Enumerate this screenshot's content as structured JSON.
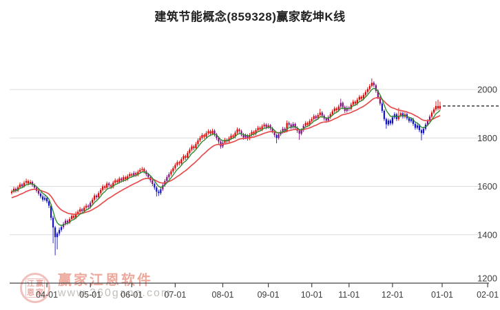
{
  "page": {
    "title": "建筑节能概念(859328)赢家乾坤K线"
  },
  "watermark": {
    "brand": "赢家江恩软件",
    "url": "www.360gann.com",
    "seal_chars": [
      "江",
      "赢",
      "恩",
      "家"
    ]
  },
  "chart_data": {
    "type": "candlestick",
    "title": "建筑节能概念(859328)赢家乾坤K线",
    "x_tick_labels": [
      "04-01",
      "05-01",
      "06-01",
      "07-01",
      "08-01",
      "09-01",
      "10-01",
      "11-01",
      "12-01",
      "01-01",
      "02-01"
    ],
    "x_tick_days": [
      17,
      38,
      58,
      79,
      102,
      124,
      145,
      163,
      184,
      208,
      230
    ],
    "y_axis": {
      "min": 1200,
      "max": 2000,
      "step": 200
    },
    "y_tick_labels": [
      "2000",
      "1800",
      "1600",
      "1400",
      "1200"
    ],
    "grid": true,
    "legend": "none",
    "last_price": 1932,
    "last_price_line_style": "black-dashed",
    "colors": {
      "up": "#e10000",
      "down": "#1212cc",
      "neutral": "#7d0b7d",
      "ma_short": "#2f8b30",
      "ma_long": "#e74c4c",
      "grid": "#dcdcdc",
      "axis": "#444444",
      "label": "#3c3c3c",
      "dashed_line": "#111111"
    },
    "ma_lines": [
      {
        "name": "ma-short",
        "period": 6,
        "seed": 1578,
        "color_key": "ma_short",
        "width": 1.4
      },
      {
        "name": "ma-long",
        "period": 20,
        "seed": 1550,
        "color_key": "ma_long",
        "width": 1.7
      }
    ],
    "candles": [
      [
        1572,
        1586,
        1566,
        1578,
        "r"
      ],
      [
        1578,
        1598,
        1572,
        1590,
        "r"
      ],
      [
        1590,
        1596,
        1574,
        1582,
        "p"
      ],
      [
        1582,
        1604,
        1576,
        1596,
        "r"
      ],
      [
        1596,
        1616,
        1590,
        1608,
        "r"
      ],
      [
        1608,
        1614,
        1592,
        1600,
        "p"
      ],
      [
        1600,
        1623,
        1595,
        1615,
        "r"
      ],
      [
        1615,
        1632,
        1608,
        1622,
        "r"
      ],
      [
        1622,
        1628,
        1604,
        1612,
        "r"
      ],
      [
        1612,
        1627,
        1606,
        1618,
        "r"
      ],
      [
        1618,
        1624,
        1598,
        1606,
        "p"
      ],
      [
        1606,
        1612,
        1588,
        1595,
        "p"
      ],
      [
        1595,
        1602,
        1574,
        1582,
        "p"
      ],
      [
        1582,
        1590,
        1562,
        1570,
        "p"
      ],
      [
        1570,
        1576,
        1550,
        1558,
        "b"
      ],
      [
        1558,
        1566,
        1537,
        1545,
        "b"
      ],
      [
        1545,
        1562,
        1539,
        1552,
        "b"
      ],
      [
        1552,
        1558,
        1530,
        1538,
        "b"
      ],
      [
        1538,
        1544,
        1510,
        1520,
        "b"
      ],
      [
        1520,
        1526,
        1460,
        1470,
        "b"
      ],
      [
        1470,
        1478,
        1365,
        1430,
        "b"
      ],
      [
        1430,
        1436,
        1315,
        1390,
        "b"
      ],
      [
        1390,
        1412,
        1340,
        1405,
        "b"
      ],
      [
        1405,
        1430,
        1396,
        1420,
        "b"
      ],
      [
        1420,
        1441,
        1412,
        1432,
        "b"
      ],
      [
        1432,
        1453,
        1424,
        1445,
        "p"
      ],
      [
        1445,
        1466,
        1438,
        1458,
        "p"
      ],
      [
        1458,
        1464,
        1441,
        1450,
        "p"
      ],
      [
        1450,
        1473,
        1444,
        1465,
        "r"
      ],
      [
        1465,
        1487,
        1458,
        1478,
        "r"
      ],
      [
        1478,
        1484,
        1461,
        1470,
        "r"
      ],
      [
        1470,
        1496,
        1464,
        1488,
        "r"
      ],
      [
        1488,
        1503,
        1481,
        1495,
        "r"
      ],
      [
        1495,
        1514,
        1488,
        1505,
        "r"
      ],
      [
        1505,
        1511,
        1490,
        1498,
        "p"
      ],
      [
        1498,
        1520,
        1491,
        1512,
        "r"
      ],
      [
        1512,
        1529,
        1505,
        1520,
        "r"
      ],
      [
        1520,
        1526,
        1506,
        1515,
        "p"
      ],
      [
        1515,
        1540,
        1508,
        1532,
        "p"
      ],
      [
        1532,
        1553,
        1525,
        1545,
        "r"
      ],
      [
        1545,
        1570,
        1538,
        1562,
        "r"
      ],
      [
        1562,
        1568,
        1546,
        1555,
        "p"
      ],
      [
        1555,
        1580,
        1548,
        1572,
        "r"
      ],
      [
        1572,
        1593,
        1565,
        1585,
        "r"
      ],
      [
        1585,
        1608,
        1578,
        1600,
        "r"
      ],
      [
        1600,
        1606,
        1585,
        1594,
        "r"
      ],
      [
        1594,
        1620,
        1587,
        1612,
        "r"
      ],
      [
        1612,
        1618,
        1596,
        1605,
        "p"
      ],
      [
        1605,
        1611,
        1589,
        1598,
        "r"
      ],
      [
        1598,
        1623,
        1591,
        1615,
        "r"
      ],
      [
        1615,
        1633,
        1608,
        1625,
        "r"
      ],
      [
        1625,
        1631,
        1609,
        1618,
        "r"
      ],
      [
        1618,
        1640,
        1611,
        1632,
        "r"
      ],
      [
        1632,
        1638,
        1616,
        1625,
        "p"
      ],
      [
        1625,
        1646,
        1618,
        1638,
        "r"
      ],
      [
        1638,
        1644,
        1621,
        1630,
        "r"
      ],
      [
        1630,
        1650,
        1623,
        1642,
        "r"
      ],
      [
        1642,
        1658,
        1635,
        1650,
        "r"
      ],
      [
        1650,
        1656,
        1636,
        1645,
        "r"
      ],
      [
        1645,
        1663,
        1638,
        1655,
        "p"
      ],
      [
        1655,
        1661,
        1639,
        1648,
        "r"
      ],
      [
        1648,
        1668,
        1641,
        1660,
        "r"
      ],
      [
        1660,
        1676,
        1653,
        1668,
        "r"
      ],
      [
        1668,
        1680,
        1661,
        1672,
        "r"
      ],
      [
        1672,
        1678,
        1653,
        1662,
        "r"
      ],
      [
        1662,
        1668,
        1641,
        1650,
        "p"
      ],
      [
        1650,
        1656,
        1629,
        1638,
        "p"
      ],
      [
        1638,
        1644,
        1616,
        1625,
        "p"
      ],
      [
        1625,
        1631,
        1601,
        1610,
        "p"
      ],
      [
        1610,
        1616,
        1586,
        1595,
        "b"
      ],
      [
        1595,
        1601,
        1558,
        1578,
        "b"
      ],
      [
        1578,
        1586,
        1560,
        1572,
        "b"
      ],
      [
        1572,
        1596,
        1565,
        1588,
        "b"
      ],
      [
        1588,
        1613,
        1581,
        1605,
        "p"
      ],
      [
        1605,
        1630,
        1598,
        1622,
        "p"
      ],
      [
        1622,
        1646,
        1615,
        1638,
        "p"
      ],
      [
        1638,
        1658,
        1631,
        1650,
        "p"
      ],
      [
        1650,
        1670,
        1643,
        1662,
        "r"
      ],
      [
        1662,
        1683,
        1655,
        1675,
        "r"
      ],
      [
        1675,
        1696,
        1668,
        1688,
        "r"
      ],
      [
        1688,
        1708,
        1681,
        1700,
        "r"
      ],
      [
        1700,
        1706,
        1686,
        1695,
        "r"
      ],
      [
        1695,
        1720,
        1688,
        1712,
        "r"
      ],
      [
        1712,
        1733,
        1705,
        1725,
        "r"
      ],
      [
        1725,
        1731,
        1709,
        1718,
        "r"
      ],
      [
        1718,
        1746,
        1711,
        1738,
        "r"
      ],
      [
        1738,
        1760,
        1731,
        1752,
        "r"
      ],
      [
        1752,
        1773,
        1745,
        1765,
        "r"
      ],
      [
        1765,
        1771,
        1749,
        1758,
        "r"
      ],
      [
        1758,
        1783,
        1751,
        1775,
        "r"
      ],
      [
        1775,
        1798,
        1768,
        1790,
        "r"
      ],
      [
        1790,
        1808,
        1783,
        1800,
        "r"
      ],
      [
        1800,
        1820,
        1793,
        1812,
        "r"
      ],
      [
        1812,
        1818,
        1796,
        1805,
        "r"
      ],
      [
        1805,
        1828,
        1798,
        1820,
        "r"
      ],
      [
        1820,
        1836,
        1813,
        1828,
        "r"
      ],
      [
        1828,
        1834,
        1809,
        1818,
        "r"
      ],
      [
        1818,
        1838,
        1811,
        1830,
        "r"
      ],
      [
        1830,
        1836,
        1806,
        1815,
        "p"
      ],
      [
        1815,
        1821,
        1791,
        1800,
        "p"
      ],
      [
        1800,
        1806,
        1776,
        1785,
        "p"
      ],
      [
        1785,
        1791,
        1756,
        1765,
        "p"
      ],
      [
        1765,
        1788,
        1758,
        1780,
        "p"
      ],
      [
        1780,
        1800,
        1773,
        1792,
        "r"
      ],
      [
        1792,
        1798,
        1777,
        1786,
        "r"
      ],
      [
        1786,
        1806,
        1779,
        1798,
        "r"
      ],
      [
        1798,
        1818,
        1791,
        1810,
        "r"
      ],
      [
        1810,
        1816,
        1796,
        1805,
        "r"
      ],
      [
        1805,
        1830,
        1798,
        1822,
        "r"
      ],
      [
        1822,
        1843,
        1815,
        1835,
        "r"
      ],
      [
        1835,
        1841,
        1819,
        1828,
        "r"
      ],
      [
        1828,
        1834,
        1806,
        1815,
        "p"
      ],
      [
        1815,
        1821,
        1793,
        1802,
        "p"
      ],
      [
        1802,
        1818,
        1795,
        1810,
        "p"
      ],
      [
        1810,
        1816,
        1789,
        1798,
        "p"
      ],
      [
        1798,
        1820,
        1791,
        1812,
        "r"
      ],
      [
        1812,
        1833,
        1805,
        1825,
        "r"
      ],
      [
        1825,
        1831,
        1809,
        1818,
        "r"
      ],
      [
        1818,
        1840,
        1811,
        1832,
        "r"
      ],
      [
        1832,
        1850,
        1825,
        1842,
        "r"
      ],
      [
        1842,
        1848,
        1826,
        1835,
        "r"
      ],
      [
        1835,
        1856,
        1828,
        1848,
        "r"
      ],
      [
        1848,
        1863,
        1841,
        1855,
        "r"
      ],
      [
        1855,
        1861,
        1836,
        1845,
        "p"
      ],
      [
        1845,
        1860,
        1838,
        1852,
        "r"
      ],
      [
        1852,
        1858,
        1831,
        1840,
        "p"
      ],
      [
        1840,
        1846,
        1819,
        1828,
        "p"
      ],
      [
        1828,
        1834,
        1803,
        1812,
        "p"
      ],
      [
        1812,
        1818,
        1778,
        1800,
        "b"
      ],
      [
        1800,
        1823,
        1793,
        1815,
        "p"
      ],
      [
        1815,
        1833,
        1808,
        1825,
        "p"
      ],
      [
        1825,
        1846,
        1818,
        1838,
        "p"
      ],
      [
        1838,
        1844,
        1821,
        1830,
        "p"
      ],
      [
        1830,
        1872,
        1823,
        1862,
        "r"
      ],
      [
        1862,
        1868,
        1846,
        1855,
        "p"
      ],
      [
        1855,
        1861,
        1836,
        1845,
        "p"
      ],
      [
        1845,
        1866,
        1838,
        1858,
        "p"
      ],
      [
        1858,
        1864,
        1834,
        1842,
        "p"
      ],
      [
        1842,
        1848,
        1821,
        1830,
        "p"
      ],
      [
        1830,
        1836,
        1792,
        1818,
        "p"
      ],
      [
        1818,
        1840,
        1811,
        1832,
        "p"
      ],
      [
        1832,
        1858,
        1825,
        1850,
        "p"
      ],
      [
        1850,
        1870,
        1843,
        1862,
        "r"
      ],
      [
        1862,
        1868,
        1846,
        1855,
        "r"
      ],
      [
        1855,
        1878,
        1848,
        1870,
        "r"
      ],
      [
        1870,
        1886,
        1863,
        1878,
        "r"
      ],
      [
        1878,
        1898,
        1871,
        1890,
        "r"
      ],
      [
        1890,
        1896,
        1873,
        1882,
        "p"
      ],
      [
        1882,
        1903,
        1875,
        1895,
        "r"
      ],
      [
        1895,
        1920,
        1888,
        1905,
        "r"
      ],
      [
        1905,
        1911,
        1883,
        1892,
        "p"
      ],
      [
        1892,
        1898,
        1871,
        1880,
        "p"
      ],
      [
        1880,
        1886,
        1863,
        1872,
        "p"
      ],
      [
        1872,
        1893,
        1865,
        1885,
        "p"
      ],
      [
        1885,
        1906,
        1878,
        1898,
        "r"
      ],
      [
        1898,
        1918,
        1891,
        1910,
        "r"
      ],
      [
        1910,
        1930,
        1903,
        1922,
        "r"
      ],
      [
        1922,
        1928,
        1906,
        1915,
        "r"
      ],
      [
        1915,
        1938,
        1908,
        1930,
        "r"
      ],
      [
        1930,
        1962,
        1923,
        1945,
        "p"
      ],
      [
        1945,
        1951,
        1919,
        1928,
        "p"
      ],
      [
        1928,
        1934,
        1903,
        1912,
        "p"
      ],
      [
        1912,
        1933,
        1905,
        1925,
        "p"
      ],
      [
        1925,
        1931,
        1911,
        1920,
        "p"
      ],
      [
        1920,
        1946,
        1913,
        1938,
        "r"
      ],
      [
        1938,
        1958,
        1931,
        1950,
        "r"
      ],
      [
        1950,
        1956,
        1933,
        1942,
        "r"
      ],
      [
        1942,
        1966,
        1935,
        1958,
        "r"
      ],
      [
        1958,
        1978,
        1951,
        1970,
        "r"
      ],
      [
        1970,
        1976,
        1953,
        1962,
        "r"
      ],
      [
        1962,
        1986,
        1955,
        1978,
        "r"
      ],
      [
        1978,
        1998,
        1971,
        1990,
        "r"
      ],
      [
        1990,
        2010,
        1983,
        2002,
        "r"
      ],
      [
        2002,
        2023,
        1995,
        2015,
        "r"
      ],
      [
        2015,
        2046,
        2008,
        2028,
        "r"
      ],
      [
        2028,
        2034,
        2010,
        2018,
        "p"
      ],
      [
        2018,
        2024,
        1987,
        1995,
        "p"
      ],
      [
        1995,
        2001,
        1960,
        1968,
        "p"
      ],
      [
        1968,
        1974,
        1934,
        1942,
        "p"
      ],
      [
        1942,
        1948,
        1904,
        1912,
        "b"
      ],
      [
        1912,
        1918,
        1870,
        1878,
        "b"
      ],
      [
        1878,
        1884,
        1838,
        1856,
        "b"
      ],
      [
        1856,
        1880,
        1849,
        1872,
        "b"
      ],
      [
        1872,
        1878,
        1852,
        1860,
        "b"
      ],
      [
        1860,
        1893,
        1853,
        1885,
        "b"
      ],
      [
        1885,
        1906,
        1878,
        1898,
        "b"
      ],
      [
        1898,
        1904,
        1870,
        1878,
        "b"
      ],
      [
        1878,
        1925,
        1871,
        1892,
        "r"
      ],
      [
        1892,
        1910,
        1885,
        1902,
        "r"
      ],
      [
        1902,
        1908,
        1880,
        1888,
        "b"
      ],
      [
        1888,
        1906,
        1881,
        1898,
        "r"
      ],
      [
        1898,
        1904,
        1874,
        1882,
        "b"
      ],
      [
        1882,
        1888,
        1862,
        1870,
        "b"
      ],
      [
        1870,
        1886,
        1863,
        1878,
        "b"
      ],
      [
        1878,
        1884,
        1850,
        1858,
        "b"
      ],
      [
        1858,
        1864,
        1834,
        1842,
        "b"
      ],
      [
        1842,
        1860,
        1835,
        1852,
        "b"
      ],
      [
        1852,
        1858,
        1824,
        1832,
        "b"
      ],
      [
        1832,
        1838,
        1790,
        1820,
        "b"
      ],
      [
        1820,
        1846,
        1813,
        1838,
        "b"
      ],
      [
        1838,
        1863,
        1831,
        1855,
        "b"
      ],
      [
        1855,
        1878,
        1848,
        1870,
        "p"
      ],
      [
        1870,
        1896,
        1863,
        1888,
        "p"
      ],
      [
        1888,
        1913,
        1881,
        1905,
        "r"
      ],
      [
        1905,
        1926,
        1898,
        1918,
        "r"
      ],
      [
        1918,
        1952,
        1911,
        1932,
        "r"
      ],
      [
        1932,
        1958,
        1914,
        1922,
        "r"
      ],
      [
        1922,
        1950,
        1915,
        1932,
        "r"
      ]
    ]
  }
}
